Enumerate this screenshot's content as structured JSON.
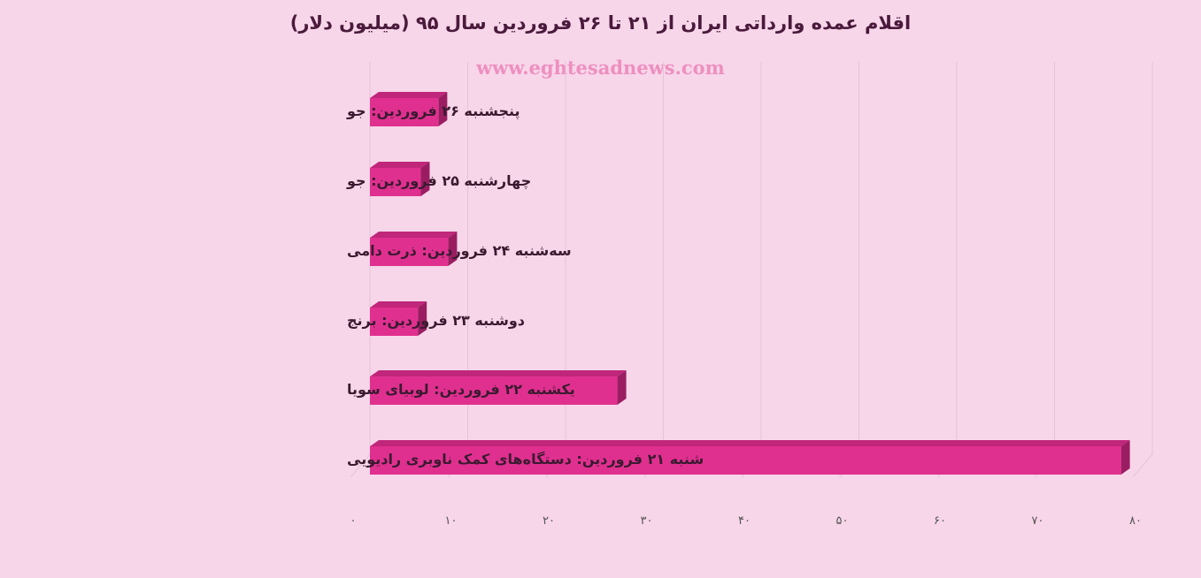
{
  "chart_data": {
    "type": "bar",
    "orientation": "horizontal",
    "title": "اقلام عمده وارداتی ایران از ۲۱ تا ۲۶ فروردین سال ۹۵ (میلیون دلار)",
    "watermark": "www.eghtesadnews.com",
    "categories": [
      "پنجشنبه ۲۶ فروردین: جو",
      "چهارشنبه ۲۵ فروردین: جو",
      "سه‌شنبه ۲۴ فروردین: ذرت دامی",
      "دوشنبه ۲۳ فروردین: برنج",
      "یکشنبه ۲۲ فروردین: لوبیای سویا",
      "شنبه ۲۱ فروردین: دستگاه‌های کمک ناوبری رادیویی"
    ],
    "values": [
      7,
      5.2,
      8,
      4.9,
      25.3,
      76.8
    ],
    "xlim": [
      0,
      80
    ],
    "ticks": [
      0,
      10,
      20,
      30,
      40,
      50,
      60,
      70,
      80
    ],
    "tick_labels": [
      "۰",
      "۱۰",
      "۲۰",
      "۳۰",
      "۴۰",
      "۵۰",
      "۶۰",
      "۷۰",
      "۸۰"
    ],
    "grid": true,
    "bar_color": "#e0308f",
    "bar_top_color": "#c0267a",
    "bar_side_color": "#9a1d62",
    "grid_color": "#e6c4d7",
    "background": "#f7d6e9"
  }
}
